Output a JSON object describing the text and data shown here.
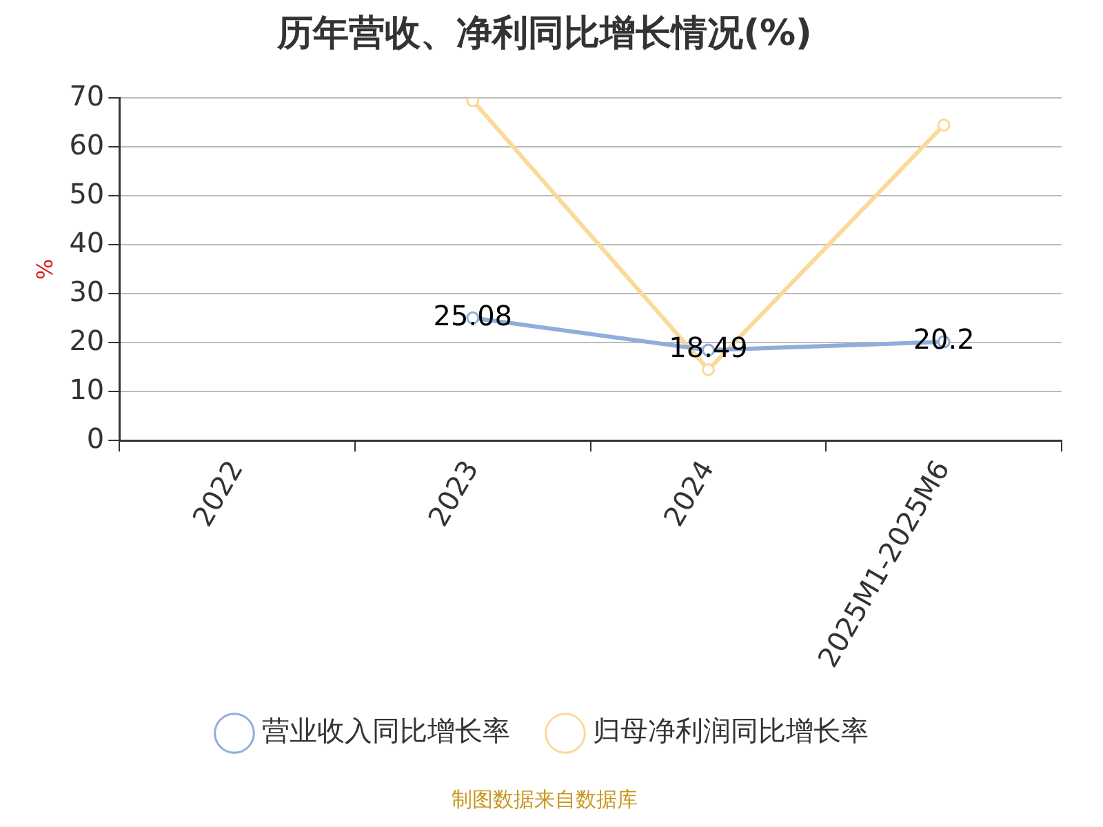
{
  "chart_data": {
    "type": "line",
    "title": "历年营收、净利同比增长情况(%)",
    "ylabel": "%",
    "categories": [
      "2022",
      "2023",
      "2024",
      "2025M1-2025M6"
    ],
    "series": [
      {
        "name": "营业收入同比增长率",
        "color": "#8eaedc",
        "values": [
          null,
          25.08,
          18.49,
          20.2
        ],
        "value_labels": [
          null,
          "25.08",
          "18.49",
          "20.2"
        ]
      },
      {
        "name": "归母净利润同比增长率",
        "color": "#fcd899",
        "values": [
          null,
          69.5,
          14.5,
          64.5
        ]
      }
    ],
    "ylim": [
      0,
      70
    ],
    "yticks": [
      0,
      10,
      20,
      30,
      40,
      50,
      60,
      70
    ],
    "grid": "y",
    "legend": "bottom",
    "marker": "circle",
    "line_style": "solid",
    "annotations": [
      "制图数据来自数据库"
    ]
  }
}
